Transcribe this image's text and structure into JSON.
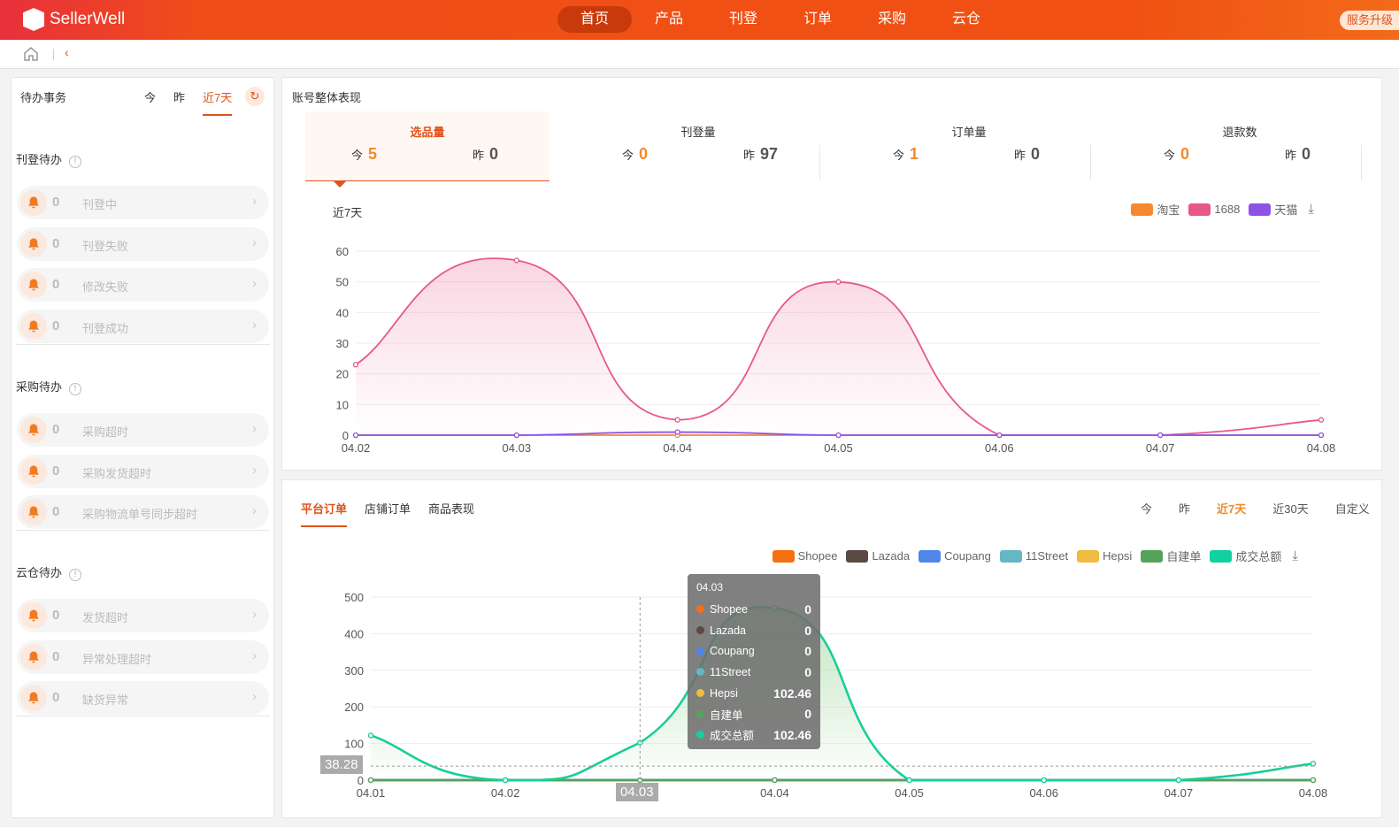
{
  "header": {
    "brand": "SellerWell",
    "nav": [
      "首页",
      "产品",
      "刊登",
      "订单",
      "采购",
      "云仓"
    ],
    "active_nav": 0,
    "service_label": "服务升级"
  },
  "breadcrumb": {
    "home_icon": "home-icon",
    "back_icon": "chevron-left-icon"
  },
  "todo": {
    "title": "待办事务",
    "tabs": [
      "今",
      "昨",
      "近7天"
    ],
    "active_tab": 2,
    "refresh_icon": "refresh-icon",
    "sections": [
      {
        "title": "刊登待办",
        "items": [
          {
            "count": "0",
            "label": "刊登中"
          },
          {
            "count": "0",
            "label": "刊登失败"
          },
          {
            "count": "0",
            "label": "修改失败"
          },
          {
            "count": "0",
            "label": "刊登成功"
          }
        ]
      },
      {
        "title": "采购待办",
        "items": [
          {
            "count": "0",
            "label": "采购超时"
          },
          {
            "count": "0",
            "label": "采购发货超时"
          },
          {
            "count": "0",
            "label": "采购物流单号同步超时"
          }
        ]
      },
      {
        "title": "云仓待办",
        "items": [
          {
            "count": "0",
            "label": "发货超时"
          },
          {
            "count": "0",
            "label": "异常处理超时"
          },
          {
            "count": "0",
            "label": "缺货异常"
          }
        ]
      }
    ]
  },
  "overview": {
    "title": "账号整体表现",
    "today_label": "今",
    "yesterday_label": "昨",
    "kpis": [
      {
        "label": "选品量",
        "today": "5",
        "yesterday": "0"
      },
      {
        "label": "刊登量",
        "today": "0",
        "yesterday": "97"
      },
      {
        "label": "订单量",
        "today": "1",
        "yesterday": "0"
      },
      {
        "label": "退款数",
        "today": "0",
        "yesterday": "0"
      }
    ],
    "active_kpi": 0,
    "period": "近7天"
  },
  "orders": {
    "tabs": [
      "平台订单",
      "店铺订单",
      "商品表现"
    ],
    "active_tab": 0,
    "ranges": [
      "今",
      "昨",
      "近7天",
      "近30天",
      "自定义"
    ],
    "active_range": 2,
    "tooltip": {
      "date": "04.03",
      "rows": [
        {
          "name": "Shopee",
          "value": "0"
        },
        {
          "name": "Lazada",
          "value": "0"
        },
        {
          "name": "Coupang",
          "value": "0"
        },
        {
          "name": "11Street",
          "value": "0"
        },
        {
          "name": "Hepsi",
          "value": "102.46"
        },
        {
          "name": "自建单",
          "value": "0"
        },
        {
          "name": "成交总额",
          "value": "102.46"
        }
      ]
    },
    "crosshair_y_label": "38.28",
    "crosshair_x_label": "04.03"
  },
  "chart_data": [
    {
      "type": "line",
      "smooth": true,
      "area": true,
      "categories": [
        "04.02",
        "04.03",
        "04.04",
        "04.05",
        "04.06",
        "04.07",
        "04.08"
      ],
      "ylim": [
        0,
        60
      ],
      "yticks": [
        0,
        10,
        20,
        30,
        40,
        50,
        60
      ],
      "legend": "top-right",
      "series": [
        {
          "name": "淘宝",
          "color": "#f7882f",
          "values": [
            0,
            0,
            0,
            0,
            0,
            0,
            0
          ]
        },
        {
          "name": "1688",
          "color": "#e8578b",
          "values": [
            23,
            57,
            5,
            50,
            0,
            0,
            5
          ]
        },
        {
          "name": "天猫",
          "color": "#8e52e6",
          "values": [
            0,
            0,
            1,
            0,
            0,
            0,
            0
          ]
        }
      ]
    },
    {
      "type": "line",
      "smooth": true,
      "area": true,
      "categories": [
        "04.01",
        "04.02",
        "04.03",
        "04.04",
        "04.05",
        "04.06",
        "04.07",
        "04.08"
      ],
      "ylim": [
        0,
        500
      ],
      "yticks": [
        0,
        100,
        200,
        300,
        400,
        500
      ],
      "legend": "top-right",
      "series": [
        {
          "name": "Shopee",
          "color": "#f57010",
          "values": [
            0,
            0,
            0,
            0,
            0,
            0,
            0,
            0
          ]
        },
        {
          "name": "Lazada",
          "color": "#5a4a42",
          "values": [
            0,
            0,
            0,
            0,
            0,
            0,
            0,
            0
          ]
        },
        {
          "name": "Coupang",
          "color": "#4e86ea",
          "values": [
            0,
            0,
            0,
            0,
            0,
            0,
            0,
            0
          ]
        },
        {
          "name": "11Street",
          "color": "#63b8c6",
          "values": [
            0,
            0,
            0,
            0,
            0,
            0,
            0,
            0
          ]
        },
        {
          "name": "Hepsi",
          "color": "#f1bb3f",
          "values": [
            122,
            0,
            102.46,
            470,
            0,
            0,
            0,
            45
          ]
        },
        {
          "name": "自建单",
          "color": "#55a25a",
          "values": [
            0,
            0,
            0,
            0,
            0,
            0,
            0,
            0
          ]
        },
        {
          "name": "成交总额",
          "color": "#12d0a0",
          "values": [
            122,
            0,
            102.46,
            470,
            0,
            0,
            0,
            45
          ]
        }
      ]
    }
  ]
}
